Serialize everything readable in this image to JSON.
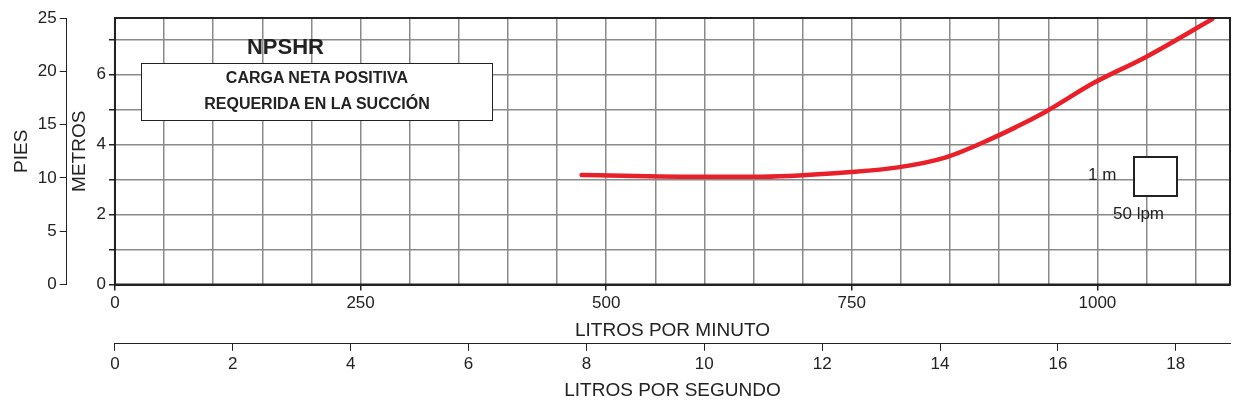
{
  "chart_data": {
    "type": "line",
    "title": "NPSHR",
    "subtitle": "CARGA NETA POSITIVA REQUERIDA EN LA SUCCIÓN",
    "xlabel": "LITROS POR MINUTO",
    "ylabel": "METROS",
    "y2label": "PIES",
    "x2label": "LITROS POR SEGUNDO",
    "x": [
      475,
      600,
      648,
      749,
      797,
      845,
      889,
      946,
      996,
      1049,
      1117
    ],
    "series": [
      {
        "color": "#e8202a",
        "values": [
          3.13,
          3.08,
          3.08,
          3.22,
          3.35,
          3.63,
          4.13,
          4.92,
          5.76,
          6.5,
          7.59
        ]
      }
    ],
    "xlim": [
      0,
      1135
    ],
    "xticks": [
      0,
      {
        "value": 50,
        "label": null
      },
      {
        "value": 100,
        "label": null
      },
      {
        "value": 150,
        "label": null
      },
      {
        "value": 200,
        "label": null
      },
      250,
      {
        "value": 300,
        "label": null
      },
      {
        "value": 350,
        "label": null
      },
      {
        "value": 400,
        "label": null
      },
      {
        "value": 450,
        "label": null
      },
      500,
      {
        "value": 550,
        "label": null
      },
      {
        "value": 600,
        "label": null
      },
      {
        "value": 650,
        "label": null
      },
      {
        "value": 700,
        "label": null
      },
      750,
      {
        "value": 800,
        "label": null
      },
      {
        "value": 850,
        "label": null
      },
      {
        "value": 900,
        "label": null
      },
      {
        "value": 950,
        "label": null
      },
      1000,
      {
        "value": 1050,
        "label": null
      },
      {
        "value": 1100,
        "label": null
      }
    ],
    "ylim": [
      0,
      7.62
    ],
    "yticks": [
      0,
      {
        "value": 1,
        "label": null
      },
      2,
      {
        "value": 3,
        "label": null
      },
      4,
      {
        "value": 5,
        "label": null
      },
      6,
      {
        "value": 7,
        "label": null
      }
    ],
    "y2lim": [
      0,
      25
    ],
    "y2ticks": [
      0,
      5,
      10,
      15,
      20,
      25
    ],
    "x2lim": [
      0,
      18.92
    ],
    "x2ticks": [
      0,
      2,
      4,
      6,
      8,
      10,
      12,
      14,
      16,
      18
    ],
    "annotations": [
      "1 m",
      "50 lpm"
    ],
    "grid": true,
    "legend": false,
    "marker": "none",
    "line_style": "solid"
  }
}
